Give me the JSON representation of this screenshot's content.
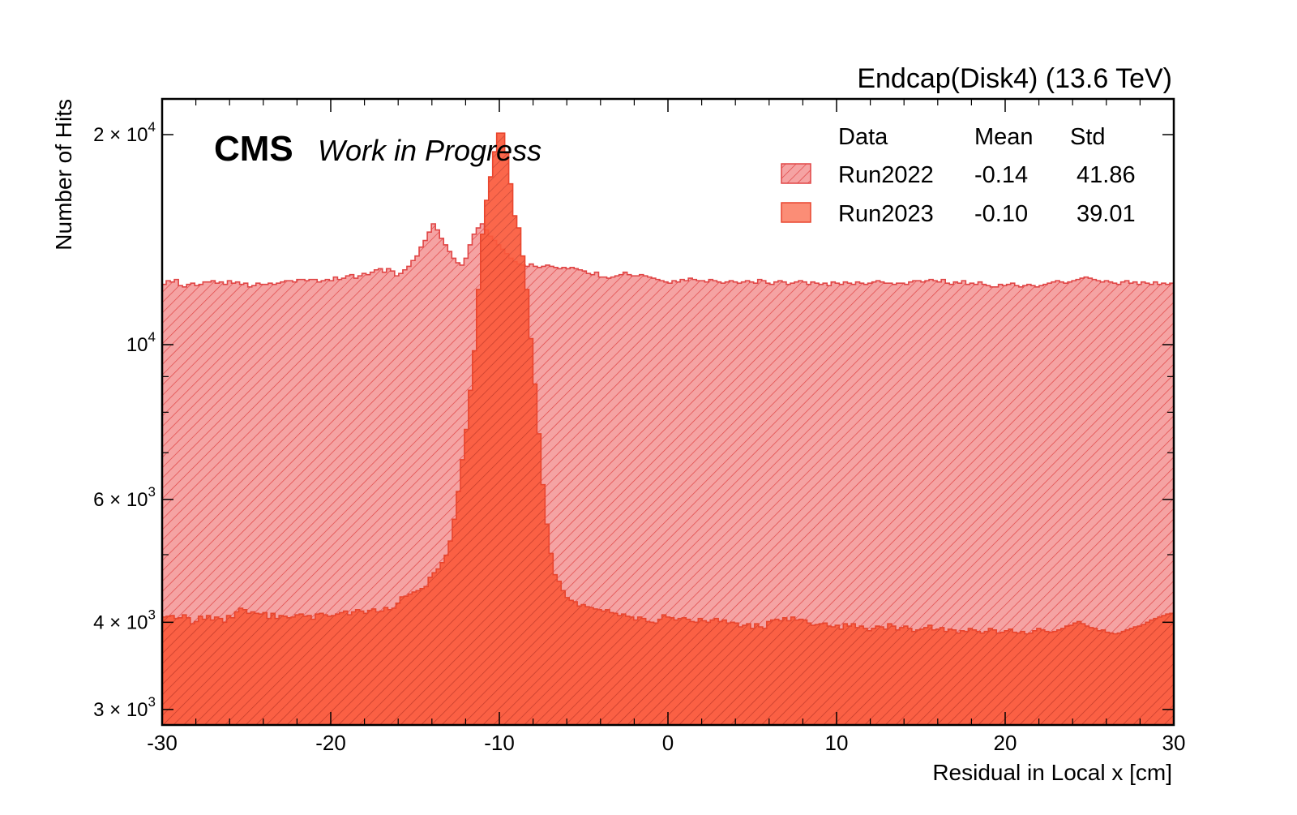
{
  "chart_data": {
    "type": "histogram",
    "title": "Endcap(Disk4) (13.6 TeV)",
    "xlabel": "Residual in Local x [cm]",
    "ylabel": "Number of Hits",
    "xlim": [
      -30,
      30
    ],
    "ylim": [
      2850,
      22500
    ],
    "yscale": "log",
    "grid": false,
    "bin_width": 0.5,
    "x_ticks": [
      {
        "value": -30,
        "label": "-30"
      },
      {
        "value": -20,
        "label": "-20"
      },
      {
        "value": -10,
        "label": "-10"
      },
      {
        "value": 0,
        "label": "0"
      },
      {
        "value": 10,
        "label": "10"
      },
      {
        "value": 20,
        "label": "20"
      },
      {
        "value": 30,
        "label": "30"
      }
    ],
    "y_ticks": [
      {
        "value": 3000,
        "mant": "3 × 10",
        "exp": "3"
      },
      {
        "value": 4000,
        "mant": "4 × 10",
        "exp": "3"
      },
      {
        "value": 6000,
        "mant": "6 × 10",
        "exp": "3"
      },
      {
        "value": 10000,
        "mant": "10",
        "exp": "4"
      },
      {
        "value": 20000,
        "mant": "2 × 10",
        "exp": "4"
      }
    ],
    "experiment_label": "CMS",
    "status_label": "Work in Progress",
    "legend": {
      "placement": "top-right",
      "headers": [
        "Data",
        "Mean",
        "Std"
      ],
      "rows": [
        {
          "name": "Run2022",
          "mean": "-0.14",
          "std": "41.86",
          "style": "hatched"
        },
        {
          "name": "Run2023",
          "mean": "-0.10",
          "std": "39.01",
          "style": "solid"
        }
      ]
    },
    "series": [
      {
        "name": "Run2022",
        "fill": "#f5a3a3",
        "edge": "#e04545",
        "hatch": "#e04545",
        "values": [
          12200,
          12350,
          12300,
          12400,
          12150,
          12100,
          12200,
          12250,
          12150,
          12200,
          12300,
          12300,
          12350,
          12250,
          12300,
          12200,
          12350,
          12250,
          12300,
          12200,
          12250,
          12100,
          12150,
          12250,
          12200,
          12200,
          12250,
          12200,
          12250,
          12300,
          12350,
          12350,
          12300,
          12400,
          12400,
          12350,
          12400,
          12400,
          12300,
          12350,
          12400,
          12350,
          12500,
          12400,
          12450,
          12550,
          12600,
          12450,
          12550,
          12650,
          12600,
          12700,
          12800,
          12850,
          12700,
          12850,
          12750,
          12550,
          12650,
          12800,
          12950,
          13200,
          13400,
          13800,
          14100,
          14500,
          14900,
          14600,
          14200,
          13900,
          13600,
          13300,
          13100,
          13000,
          13300,
          13900,
          14400,
          14700,
          14900,
          14600,
          14300,
          14100,
          13900,
          13700,
          13500,
          13300,
          13150,
          13050,
          13000,
          12950,
          13050,
          12950,
          12900,
          12950,
          13000,
          12950,
          12900,
          12850,
          12900,
          12850,
          12900,
          12850,
          12800,
          12750,
          12650,
          12600,
          12700,
          12500,
          12500,
          12450,
          12500,
          12550,
          12600,
          12700,
          12600,
          12550,
          12550,
          12600,
          12550,
          12500,
          12450,
          12400,
          12350,
          12300,
          12250,
          12350,
          12300,
          12400,
          12350,
          12450,
          12400,
          12350,
          12350,
          12300,
          12400,
          12350,
          12300,
          12250,
          12300,
          12350,
          12300,
          12250,
          12300,
          12350,
          12300,
          12250,
          12400,
          12350,
          12250,
          12200,
          12300,
          12350,
          12300,
          12200,
          12250,
          12300,
          12350,
          12300,
          12200,
          12300,
          12250,
          12200,
          12250,
          12150,
          12300,
          12250,
          12200,
          12300,
          12250,
          12200,
          12300,
          12250,
          12200,
          12250,
          12300,
          12350,
          12300,
          12250,
          12250,
          12200,
          12250,
          12250,
          12200,
          12300,
          12350,
          12350,
          12300,
          12350,
          12400,
          12350,
          12300,
          12400,
          12250,
          12200,
          12300,
          12250,
          12350,
          12200,
          12250,
          12200,
          12300,
          12200,
          12150,
          12100,
          12100,
          12200,
          12150,
          12200,
          12250,
          12150,
          12100,
          12150,
          12200,
          12150,
          12100,
          12150,
          12200,
          12250,
          12300,
          12350,
          12300,
          12250,
          12300,
          12350,
          12400,
          12450,
          12500,
          12450,
          12400,
          12350,
          12300,
          12350,
          12300,
          12250,
          12200,
          12300,
          12350,
          12250,
          12300,
          12200,
          12300,
          12250,
          12200,
          12300,
          12200,
          12250,
          12200,
          12250
        ]
      },
      {
        "name": "Run2023",
        "fill": "#fb5a3c",
        "edge": "#e8452e",
        "hatch": "#c03a28",
        "values": [
          4070,
          4080,
          4090,
          4050,
          4060,
          4100,
          4060,
          3980,
          4010,
          4080,
          4040,
          4090,
          4030,
          4070,
          4050,
          4000,
          4090,
          4060,
          4140,
          4190,
          4170,
          4120,
          4140,
          4120,
          4110,
          4130,
          4050,
          4120,
          4050,
          4090,
          4080,
          4060,
          4070,
          4100,
          4110,
          4080,
          4090,
          4040,
          4110,
          4120,
          4100,
          4080,
          4090,
          4110,
          4130,
          4150,
          4100,
          4140,
          4170,
          4150,
          4120,
          4160,
          4180,
          4140,
          4150,
          4200,
          4170,
          4190,
          4260,
          4350,
          4360,
          4390,
          4420,
          4440,
          4470,
          4500,
          4640,
          4710,
          4770,
          4870,
          4990,
          5230,
          5620,
          6160,
          6840,
          7560,
          8600,
          9800,
          12000,
          14400,
          16100,
          17400,
          18900,
          20100,
          20100,
          18800,
          17000,
          15300,
          14700,
          13400,
          12000,
          10200,
          8780,
          7450,
          6300,
          5530,
          5020,
          4680,
          4580,
          4440,
          4340,
          4300,
          4280,
          4220,
          4240,
          4210,
          4200,
          4180,
          4170,
          4150,
          4170,
          4130,
          4120,
          4090,
          4110,
          4080,
          4070,
          4030,
          4070,
          4050,
          4010,
          4000,
          3990,
          4040,
          4100,
          4070,
          4060,
          4030,
          4050,
          4060,
          4040,
          4010,
          4000,
          4050,
          4020,
          4000,
          4030,
          4050,
          4010,
          4030,
          3990,
          4000,
          3990,
          3940,
          3960,
          3980,
          3920,
          3980,
          3940,
          3920,
          4010,
          4030,
          4040,
          4020,
          4060,
          4020,
          4070,
          4030,
          4040,
          4030,
          3990,
          3960,
          3970,
          3980,
          3990,
          3950,
          3940,
          3960,
          3910,
          3980,
          3950,
          3980,
          3930,
          3950,
          3920,
          3890,
          3920,
          3950,
          3940,
          3910,
          3980,
          3950,
          3900,
          3930,
          3950,
          3920,
          3880,
          3900,
          3910,
          3930,
          3960,
          3900,
          3910,
          3930,
          3880,
          3910,
          3900,
          3860,
          3890,
          3880,
          3920,
          3900,
          3880,
          3860,
          3880,
          3920,
          3900,
          3860,
          3870,
          3890,
          3910,
          3870,
          3860,
          3880,
          3850,
          3860,
          3890,
          3920,
          3900,
          3880,
          3870,
          3880,
          3900,
          3920,
          3950,
          3960,
          3990,
          4010,
          3980,
          3950,
          3930,
          3920,
          3890,
          3900,
          3870,
          3860,
          3850,
          3860,
          3880,
          3900,
          3920,
          3940,
          3950,
          3970,
          4000,
          4030,
          4050,
          4070,
          4090,
          4110,
          4120
        ]
      }
    ]
  }
}
